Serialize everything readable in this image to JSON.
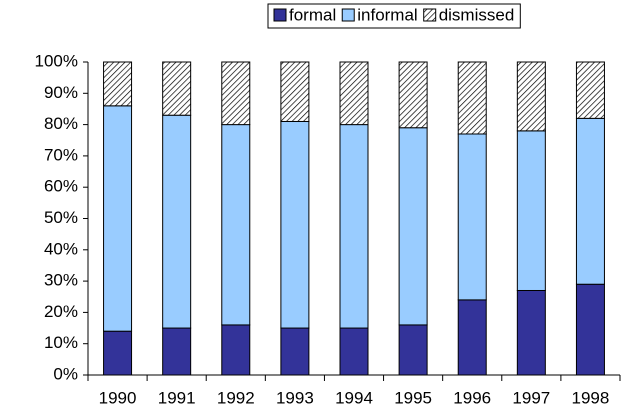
{
  "chart_data": {
    "type": "stacked-bar",
    "categories": [
      "1990",
      "1991",
      "1992",
      "1993",
      "1994",
      "1995",
      "1996",
      "1997",
      "1998"
    ],
    "series": [
      {
        "name": "formal",
        "color": "#333399",
        "values": [
          14,
          15,
          16,
          15,
          15,
          16,
          24,
          27,
          29
        ]
      },
      {
        "name": "informal",
        "color": "#99ccff",
        "values": [
          72,
          68,
          64,
          66,
          65,
          63,
          53,
          51,
          53
        ]
      },
      {
        "name": "dismissed",
        "color": "#000000",
        "hatch": true,
        "values": [
          14,
          17,
          20,
          19,
          20,
          21,
          23,
          22,
          18
        ]
      }
    ],
    "ylim": [
      0,
      100
    ],
    "yticks": [
      {
        "value": 0,
        "label": "0%"
      },
      {
        "value": 10,
        "label": "10%"
      },
      {
        "value": 20,
        "label": "20%"
      },
      {
        "value": 30,
        "label": "30%"
      },
      {
        "value": 40,
        "label": "40%"
      },
      {
        "value": 50,
        "label": "50%"
      },
      {
        "value": 60,
        "label": "60%"
      },
      {
        "value": 70,
        "label": "70%"
      },
      {
        "value": 80,
        "label": "80%"
      },
      {
        "value": 90,
        "label": "90%"
      },
      {
        "value": 100,
        "label": "100%"
      }
    ],
    "legend": "top"
  }
}
